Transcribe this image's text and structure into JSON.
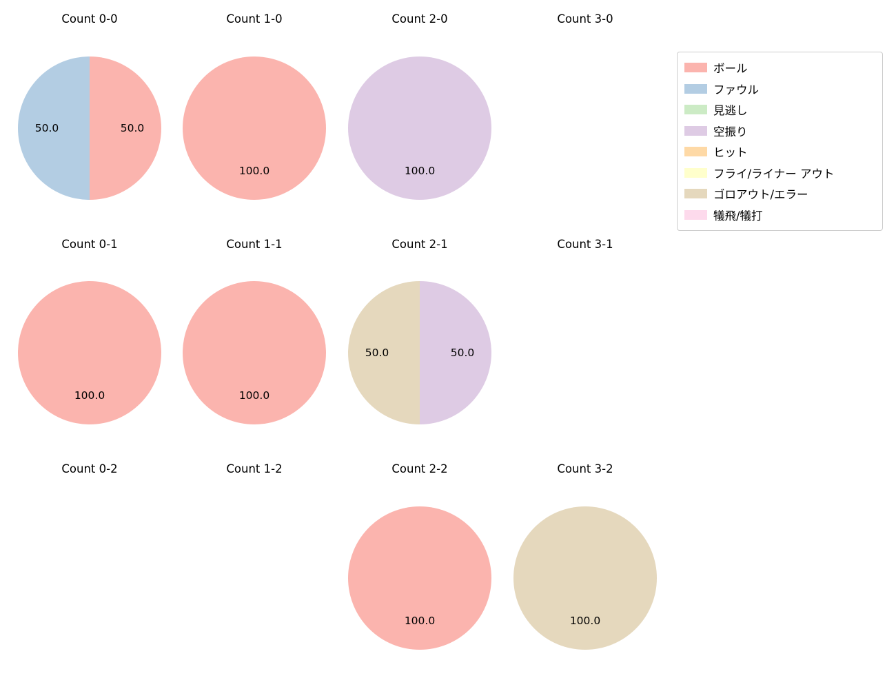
{
  "legend": {
    "position": "upper right",
    "items": [
      {
        "label": "ボール",
        "color": "#fbb4ae"
      },
      {
        "label": "ファウル",
        "color": "#b3cde3"
      },
      {
        "label": "見逃し",
        "color": "#ccebc5"
      },
      {
        "label": "空振り",
        "color": "#decbe4"
      },
      {
        "label": "ヒット",
        "color": "#fed9a6"
      },
      {
        "label": "フライ/ライナー アウト",
        "color": "#ffffcc"
      },
      {
        "label": "ゴロアウト/エラー",
        "color": "#e5d8bd"
      },
      {
        "label": "犠飛/犠打",
        "color": "#fddaec"
      }
    ]
  },
  "chart_data": {
    "type": "pie",
    "start_angle_deg": 90,
    "direction": "clockwise",
    "label_distance": 0.6,
    "value_unit": "percent",
    "grid_shape": {
      "rows": 3,
      "cols": 4
    },
    "grid": [
      {
        "title": "Count 0-0",
        "slices": [
          {
            "label": "ボール",
            "value": 50.0,
            "text": "50.0"
          },
          {
            "label": "ファウル",
            "value": 50.0,
            "text": "50.0"
          }
        ]
      },
      {
        "title": "Count 1-0",
        "slices": [
          {
            "label": "ボール",
            "value": 100.0,
            "text": "100.0"
          }
        ]
      },
      {
        "title": "Count 2-0",
        "slices": [
          {
            "label": "空振り",
            "value": 100.0,
            "text": "100.0"
          }
        ]
      },
      {
        "title": "Count 3-0",
        "slices": []
      },
      {
        "title": "Count 0-1",
        "slices": [
          {
            "label": "ボール",
            "value": 100.0,
            "text": "100.0"
          }
        ]
      },
      {
        "title": "Count 1-1",
        "slices": [
          {
            "label": "ボール",
            "value": 100.0,
            "text": "100.0"
          }
        ]
      },
      {
        "title": "Count 2-1",
        "slices": [
          {
            "label": "空振り",
            "value": 50.0,
            "text": "50.0"
          },
          {
            "label": "ゴロアウト/エラー",
            "value": 50.0,
            "text": "50.0"
          }
        ]
      },
      {
        "title": "Count 3-1",
        "slices": []
      },
      {
        "title": "Count 0-2",
        "slices": []
      },
      {
        "title": "Count 1-2",
        "slices": []
      },
      {
        "title": "Count 2-2",
        "slices": [
          {
            "label": "ボール",
            "value": 100.0,
            "text": "100.0"
          }
        ]
      },
      {
        "title": "Count 3-2",
        "slices": [
          {
            "label": "ゴロアウト/エラー",
            "value": 100.0,
            "text": "100.0"
          }
        ]
      }
    ]
  }
}
